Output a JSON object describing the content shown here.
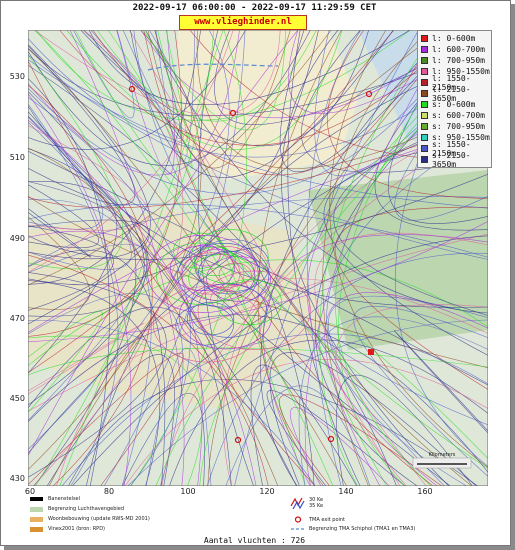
{
  "header": {
    "title": "2022-09-17 06:00:00 - 2022-09-17 11:29:59 CET",
    "site": "www.vlieghinder.nl"
  },
  "axes": {
    "x_ticks": [
      "60",
      "80",
      "100",
      "120",
      "140",
      "160"
    ],
    "y_ticks": [
      "530",
      "510",
      "490",
      "470",
      "450",
      "430"
    ]
  },
  "legend": [
    {
      "label": "l: 0-600m",
      "color": "#e0191b"
    },
    {
      "label": "l: 600-700m",
      "color": "#a62de0"
    },
    {
      "label": "l: 700-950m",
      "color": "#4a8a20"
    },
    {
      "label": "l: 950-1550m",
      "color": "#e05a9a"
    },
    {
      "label": "l: 1550-2150m",
      "color": "#b5202a"
    },
    {
      "label": "l: 2150-3650m",
      "color": "#8a4a1e"
    },
    {
      "label": "s: 0-600m",
      "color": "#22dd22"
    },
    {
      "label": "s: 600-700m",
      "color": "#c8e06a"
    },
    {
      "label": "s: 700-950m",
      "color": "#6aaa2a"
    },
    {
      "label": "s: 950-1550m",
      "color": "#30d0c0"
    },
    {
      "label": "s: 1550-2150m",
      "color": "#4a58c8"
    },
    {
      "label": "s: 2150-3650m",
      "color": "#2a2a8a"
    }
  ],
  "footer": {
    "runway": "Banenstelsel",
    "boundary": "Begrenzing Luchthavengebied",
    "housing": "Woonbebouwing (update RWS-MD 2001)",
    "vinex": "Vinex2001 (bron: RPD)",
    "ke30": "30 Ke",
    "ke35": "35 Ke",
    "tma_exit": "TMA exit point",
    "tma_boundary": "Begrenzing TMA Schiphol  (TMA1 en TMA3)"
  },
  "scale_label": "Kilometers",
  "flight_count": "Aantal vluchten : 726",
  "colors": {
    "land": "#f2ecd0",
    "water": "#c9dcea",
    "green": "#bcd6b0"
  }
}
